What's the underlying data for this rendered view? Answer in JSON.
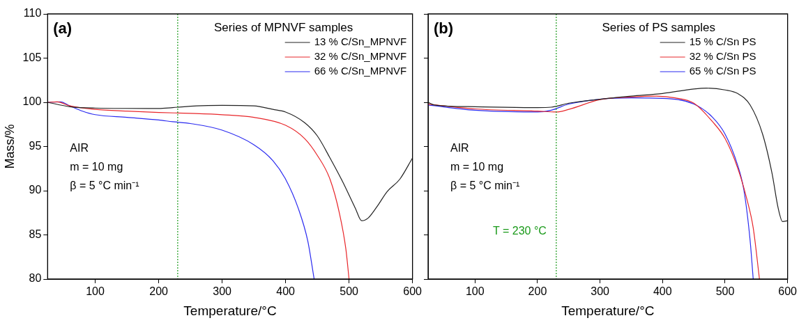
{
  "chart_data": [
    {
      "type": "line",
      "title": "(a)",
      "legend_title": "Series of MPNVF samples",
      "xlabel": "Temperature/°C",
      "ylabel": "Mass/%",
      "xlim": [
        25,
        600
      ],
      "xticks": [
        100,
        200,
        300,
        400,
        500,
        600
      ],
      "ylim": [
        80,
        110
      ],
      "yticks": [
        80,
        85,
        90,
        95,
        100,
        105,
        110
      ],
      "grid": false,
      "legend": "top right",
      "marker": "none",
      "line_style": "solid",
      "ref_lines": [
        {
          "axis": "x",
          "value": 230,
          "color": "#1a9a1a",
          "line_style": "dotted"
        }
      ],
      "annotations": [
        "AIR",
        "m = 10 mg",
        "β = 5 °C min⁻¹"
      ],
      "series": [
        {
          "name": "13 % C/Sn_MPNVF",
          "color": "#222222",
          "x": [
            25,
            60,
            100,
            200,
            222,
            260,
            300,
            350,
            380,
            400,
            430,
            450,
            470,
            490,
            510,
            520,
            530,
            545,
            560,
            580,
            600
          ],
          "values": [
            100.0,
            99.5,
            99.35,
            99.3,
            99.4,
            99.6,
            99.65,
            99.6,
            99.2,
            98.9,
            97.7,
            96.2,
            93.7,
            91.0,
            88.0,
            86.6,
            86.9,
            88.3,
            89.9,
            91.3,
            93.7
          ]
        },
        {
          "name": "32 % C/Sn_MPNVF",
          "color": "#e8262a",
          "x": [
            25,
            40,
            60,
            100,
            150,
            200,
            250,
            300,
            350,
            400,
            430,
            450,
            470,
            485,
            495,
            500
          ],
          "values": [
            100.0,
            100.05,
            99.6,
            99.2,
            99.0,
            98.85,
            98.75,
            98.6,
            98.3,
            97.4,
            95.9,
            94.0,
            91.3,
            87.4,
            83.4,
            80.0
          ]
        },
        {
          "name": "66 % C/Sn_MPNVF",
          "color": "#2a2af0",
          "x": [
            25,
            45,
            60,
            80,
            100,
            150,
            200,
            222,
            250,
            300,
            350,
            380,
            400,
            420,
            435,
            445
          ],
          "values": [
            100.0,
            100.05,
            99.6,
            99.0,
            98.6,
            98.3,
            98.0,
            97.8,
            97.6,
            96.85,
            95.2,
            93.4,
            91.3,
            88.0,
            84.3,
            80.0
          ]
        }
      ]
    },
    {
      "type": "line",
      "title": "(b)",
      "legend_title": "Series of PS samples",
      "xlabel": "Temperature/°C",
      "xlim": [
        25,
        600
      ],
      "xticks": [
        100,
        200,
        300,
        400,
        500,
        600
      ],
      "ylim": [
        80,
        110
      ],
      "yticks": [
        80,
        85,
        90,
        95,
        100,
        105,
        110
      ],
      "tick_labels": "x",
      "grid": false,
      "legend": "top right",
      "marker": "none",
      "line_style": "solid",
      "ref_lines": [
        {
          "axis": "x",
          "value": 230,
          "label": "T = 230 °C",
          "color": "#1a9a1a",
          "line_style": "dotted"
        }
      ],
      "annotations": [
        "AIR",
        "m = 10 mg",
        "β = 5 °C min⁻¹"
      ],
      "series": [
        {
          "name": "15 % C/Sn PS",
          "color": "#222222",
          "x": [
            25,
            35,
            100,
            200,
            222,
            250,
            300,
            350,
            400,
            450,
            470,
            500,
            520,
            540,
            560,
            575,
            585,
            592,
            600
          ],
          "values": [
            100.0,
            99.7,
            99.5,
            99.4,
            99.45,
            99.9,
            100.35,
            100.7,
            101.0,
            101.5,
            101.6,
            101.4,
            101.0,
            99.7,
            96.4,
            92.0,
            88.0,
            86.5,
            86.6
          ]
        },
        {
          "name": "32 % C/Sn PS",
          "color": "#e8262a",
          "x": [
            25,
            100,
            200,
            230,
            250,
            300,
            350,
            390,
            420,
            450,
            480,
            500,
            520,
            535,
            545,
            555
          ],
          "values": [
            99.8,
            99.25,
            99.0,
            98.9,
            99.2,
            100.3,
            100.6,
            100.7,
            100.5,
            99.9,
            97.8,
            95.9,
            92.6,
            89.0,
            85.8,
            80.0
          ]
        },
        {
          "name": "65 % C/Sn PS",
          "color": "#2a2af0",
          "x": [
            25,
            100,
            200,
            222,
            250,
            300,
            350,
            400,
            450,
            480,
            500,
            520,
            530,
            540,
            545
          ],
          "values": [
            99.7,
            99.1,
            98.9,
            99.1,
            99.8,
            100.35,
            100.5,
            100.45,
            99.8,
            98.3,
            96.4,
            92.9,
            90.1,
            84.4,
            80.0
          ]
        }
      ]
    }
  ]
}
